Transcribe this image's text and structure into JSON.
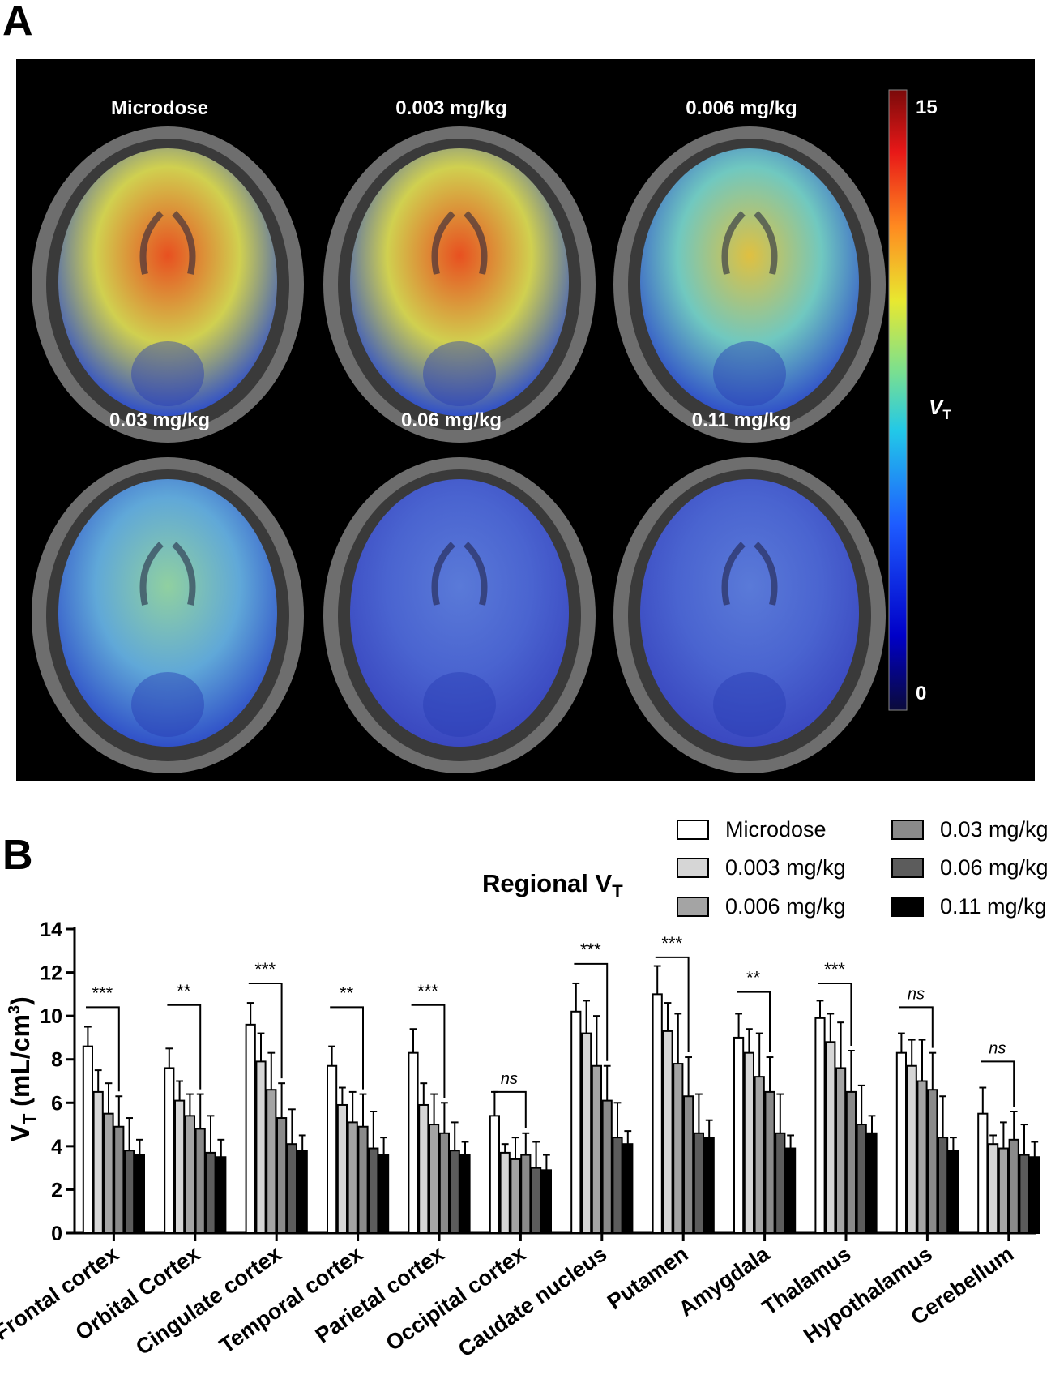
{
  "panel_a": {
    "label": "A",
    "colorbar": {
      "max_label": "15",
      "min_label": "0",
      "label_main": "V",
      "label_sub": "T"
    },
    "scans": [
      {
        "label": "Microdose",
        "level": 0.62
      },
      {
        "label": "0.003 mg/kg",
        "level": 0.55
      },
      {
        "label": "0.006 mg/kg",
        "level": 0.45
      },
      {
        "label": "0.03 mg/kg",
        "level": 0.3
      },
      {
        "label": "0.06 mg/kg",
        "level": 0.18
      },
      {
        "label": "0.11 mg/kg",
        "level": 0.17
      }
    ]
  },
  "panel_b": {
    "label": "B",
    "title_main": "Regional V",
    "title_sub": "T"
  },
  "chart_data": {
    "type": "bar",
    "ylabel": "V_T (mL/cm^3)",
    "ylabel_main": "V",
    "ylabel_sub": "T",
    "ylabel_rest": " (mL/cm",
    "ylabel_sup": "3",
    "ylabel_end": ")",
    "ylim": [
      0,
      14
    ],
    "yticks": [
      "0",
      "2",
      "4",
      "6",
      "8",
      "10",
      "12",
      "14"
    ],
    "grid": false,
    "legend_position": "top-right",
    "categories": [
      "Frontal cortex",
      "Orbital Cortex",
      "Cingulate cortex",
      "Temporal cortex",
      "Parietal cortex",
      "Occipital cortex",
      "Caudate nucleus",
      "Putamen",
      "Amygdala",
      "Thalamus",
      "Hypothalamus",
      "Cerebellum"
    ],
    "series": [
      {
        "name": "Microdose",
        "color": "#ffffff",
        "values": [
          8.6,
          7.6,
          9.6,
          7.7,
          8.3,
          5.4,
          10.2,
          11.0,
          9.0,
          9.9,
          8.3,
          5.5
        ],
        "errors": [
          0.9,
          0.9,
          1.0,
          0.9,
          1.1,
          1.1,
          1.3,
          1.3,
          1.1,
          0.8,
          0.9,
          1.2
        ]
      },
      {
        "name": "0.003 mg/kg",
        "color": "#d6d6d6",
        "values": [
          6.5,
          6.1,
          7.9,
          5.9,
          5.9,
          3.7,
          9.2,
          9.3,
          8.3,
          8.8,
          7.7,
          4.1
        ],
        "errors": [
          1.0,
          0.9,
          1.3,
          0.8,
          1.0,
          0.4,
          1.5,
          1.3,
          1.1,
          1.3,
          1.2,
          0.4
        ]
      },
      {
        "name": "0.006 mg/kg",
        "color": "#a4a4a4",
        "values": [
          5.5,
          5.4,
          6.6,
          5.1,
          5.0,
          3.4,
          7.7,
          7.8,
          7.2,
          7.6,
          7.0,
          3.9
        ],
        "errors": [
          1.4,
          1.0,
          1.7,
          1.4,
          1.4,
          1.0,
          2.3,
          2.3,
          2.0,
          2.1,
          1.9,
          1.2
        ]
      },
      {
        "name": "0.03 mg/kg",
        "color": "#8a8a8a",
        "values": [
          4.9,
          4.8,
          5.3,
          4.9,
          4.6,
          3.6,
          6.1,
          6.3,
          6.5,
          6.5,
          6.6,
          4.3
        ],
        "errors": [
          1.4,
          1.6,
          1.6,
          1.5,
          1.4,
          1.0,
          1.6,
          1.8,
          1.6,
          1.9,
          1.7,
          1.3
        ]
      },
      {
        "name": "0.06 mg/kg",
        "color": "#5c5c5c",
        "values": [
          3.8,
          3.7,
          4.1,
          3.9,
          3.8,
          3.0,
          4.4,
          4.6,
          4.6,
          5.0,
          4.4,
          3.6
        ],
        "errors": [
          1.5,
          1.7,
          1.6,
          1.7,
          1.3,
          1.2,
          1.6,
          1.8,
          1.8,
          1.8,
          1.9,
          1.4
        ]
      },
      {
        "name": "0.11 mg/kg",
        "color": "#000000",
        "values": [
          3.6,
          3.5,
          3.8,
          3.6,
          3.6,
          2.9,
          4.1,
          4.4,
          3.9,
          4.6,
          3.8,
          3.5
        ],
        "errors": [
          0.7,
          0.8,
          0.7,
          0.8,
          0.6,
          0.7,
          0.6,
          0.8,
          0.6,
          0.8,
          0.6,
          0.7
        ]
      }
    ],
    "significance": [
      {
        "label": "***",
        "level": 10.4
      },
      {
        "label": "**",
        "level": 10.5
      },
      {
        "label": "***",
        "level": 11.5
      },
      {
        "label": "**",
        "level": 10.4
      },
      {
        "label": "***",
        "level": 10.5
      },
      {
        "label": "ns",
        "level": 6.5
      },
      {
        "label": "***",
        "level": 12.4
      },
      {
        "label": "***",
        "level": 12.7
      },
      {
        "label": "**",
        "level": 11.1
      },
      {
        "label": "***",
        "level": 11.5
      },
      {
        "label": "ns",
        "level": 10.4
      },
      {
        "label": "ns",
        "level": 7.9
      }
    ]
  }
}
